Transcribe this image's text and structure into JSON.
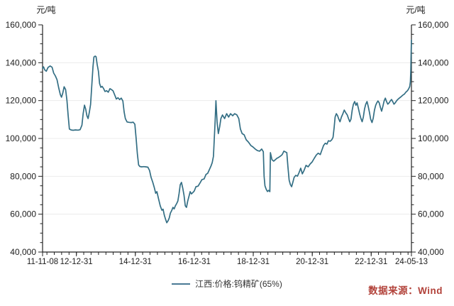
{
  "colors": {
    "axis": "#222222",
    "grid": "#ececec",
    "label": "#1c1c1c",
    "line": "#336e84",
    "legend_marker": "#4a7a95",
    "source_text": "#b2423a",
    "background": "#ffffff"
  },
  "footer": {
    "source_text": "数据来源：Wind"
  },
  "chart_data": {
    "type": "line",
    "title": "",
    "unit_label_left": "元/吨",
    "unit_label_right": "元/吨",
    "xlabel": "",
    "ylabel": "元/吨",
    "ylim": [
      40000,
      160000
    ],
    "y_tick_step": 20000,
    "y_minor_step": 5000,
    "grid": "horizontal-light",
    "legend_position": "bottom-center",
    "x_range": [
      "2011-11-08",
      "2024-05-13"
    ],
    "x_ticks": [
      {
        "label": "11-11-08",
        "date": "2011-11-08"
      },
      {
        "label": "12-12-31",
        "date": "2012-12-31"
      },
      {
        "label": "14-12-31",
        "date": "2014-12-31"
      },
      {
        "label": "16-12-31",
        "date": "2016-12-31"
      },
      {
        "label": "18-12-31",
        "date": "2018-12-31"
      },
      {
        "label": "20-12-31",
        "date": "2020-12-31"
      },
      {
        "label": "22-12-31",
        "date": "2022-12-31"
      },
      {
        "label": "24-05-13",
        "date": "2024-05-13"
      }
    ],
    "series": [
      {
        "name": "江西:价格:钨精矿(65%)",
        "color": "#336e84",
        "points": [
          [
            "2011-11-08",
            137000
          ],
          [
            "2011-11-20",
            137800
          ],
          [
            "2011-12-05",
            136200
          ],
          [
            "2011-12-25",
            135500
          ],
          [
            "2012-01-15",
            137500
          ],
          [
            "2012-02-10",
            138300
          ],
          [
            "2012-03-05",
            137600
          ],
          [
            "2012-03-25",
            134500
          ],
          [
            "2012-04-15",
            133000
          ],
          [
            "2012-05-05",
            131000
          ],
          [
            "2012-05-25",
            127000
          ],
          [
            "2012-06-15",
            123200
          ],
          [
            "2012-06-30",
            121800
          ],
          [
            "2012-07-15",
            123800
          ],
          [
            "2012-08-01",
            127300
          ],
          [
            "2012-08-20",
            125800
          ],
          [
            "2012-09-05",
            120000
          ],
          [
            "2012-09-20",
            112000
          ],
          [
            "2012-10-05",
            105000
          ],
          [
            "2012-10-25",
            104500
          ],
          [
            "2012-11-20",
            104300
          ],
          [
            "2012-12-20",
            104500
          ],
          [
            "2013-01-20",
            104400
          ],
          [
            "2013-02-15",
            104600
          ],
          [
            "2013-03-10",
            107000
          ],
          [
            "2013-03-25",
            113000
          ],
          [
            "2013-04-10",
            117600
          ],
          [
            "2013-04-25",
            115500
          ],
          [
            "2013-05-10",
            112000
          ],
          [
            "2013-05-25",
            110500
          ],
          [
            "2013-06-10",
            114000
          ],
          [
            "2013-06-25",
            118000
          ],
          [
            "2013-07-10",
            128000
          ],
          [
            "2013-07-25",
            138000
          ],
          [
            "2013-08-05",
            143000
          ],
          [
            "2013-08-20",
            143500
          ],
          [
            "2013-09-01",
            143200
          ],
          [
            "2013-09-15",
            139000
          ],
          [
            "2013-09-30",
            135600
          ],
          [
            "2013-10-15",
            129000
          ],
          [
            "2013-10-30",
            127000
          ],
          [
            "2013-11-15",
            127500
          ],
          [
            "2013-12-01",
            126500
          ],
          [
            "2013-12-20",
            124800
          ],
          [
            "2014-01-10",
            125200
          ],
          [
            "2014-01-30",
            124400
          ],
          [
            "2014-02-20",
            126300
          ],
          [
            "2014-03-10",
            125800
          ],
          [
            "2014-03-30",
            125200
          ],
          [
            "2014-04-20",
            123000
          ],
          [
            "2014-05-10",
            120800
          ],
          [
            "2014-05-30",
            121500
          ],
          [
            "2014-06-20",
            120500
          ],
          [
            "2014-07-10",
            121300
          ],
          [
            "2014-07-30",
            119800
          ],
          [
            "2014-08-15",
            114000
          ],
          [
            "2014-08-30",
            110500
          ],
          [
            "2014-09-20",
            108700
          ],
          [
            "2014-10-15",
            108500
          ],
          [
            "2014-11-10",
            108400
          ],
          [
            "2014-12-05",
            108600
          ],
          [
            "2014-12-25",
            107500
          ],
          [
            "2015-01-10",
            100000
          ],
          [
            "2015-01-25",
            92000
          ],
          [
            "2015-02-10",
            86000
          ],
          [
            "2015-02-25",
            85200
          ],
          [
            "2015-03-20",
            85000
          ],
          [
            "2015-04-15",
            85100
          ],
          [
            "2015-05-10",
            85000
          ],
          [
            "2015-06-05",
            84800
          ],
          [
            "2015-06-25",
            83100
          ],
          [
            "2015-07-15",
            79400
          ],
          [
            "2015-08-05",
            76800
          ],
          [
            "2015-08-25",
            73800
          ],
          [
            "2015-09-10",
            71000
          ],
          [
            "2015-09-25",
            71900
          ],
          [
            "2015-10-15",
            68100
          ],
          [
            "2015-11-05",
            64400
          ],
          [
            "2015-11-25",
            62100
          ],
          [
            "2015-12-10",
            62600
          ],
          [
            "2015-12-25",
            59500
          ],
          [
            "2016-01-10",
            57300
          ],
          [
            "2016-01-25",
            55500
          ],
          [
            "2016-02-10",
            56500
          ],
          [
            "2016-02-25",
            58000
          ],
          [
            "2016-03-10",
            60600
          ],
          [
            "2016-03-25",
            61800
          ],
          [
            "2016-04-10",
            63600
          ],
          [
            "2016-04-25",
            62800
          ],
          [
            "2016-05-10",
            64400
          ],
          [
            "2016-05-25",
            65500
          ],
          [
            "2016-06-10",
            66900
          ],
          [
            "2016-06-25",
            70800
          ],
          [
            "2016-07-10",
            75600
          ],
          [
            "2016-07-25",
            76800
          ],
          [
            "2016-08-10",
            73800
          ],
          [
            "2016-08-25",
            70000
          ],
          [
            "2016-09-10",
            64400
          ],
          [
            "2016-09-25",
            63600
          ],
          [
            "2016-10-10",
            66900
          ],
          [
            "2016-10-25",
            69300
          ],
          [
            "2016-11-10",
            71900
          ],
          [
            "2016-11-25",
            70700
          ],
          [
            "2016-12-15",
            71500
          ],
          [
            "2016-12-31",
            72300
          ],
          [
            "2017-01-20",
            74500
          ],
          [
            "2017-02-15",
            74800
          ],
          [
            "2017-03-10",
            76400
          ],
          [
            "2017-04-05",
            78300
          ],
          [
            "2017-05-01",
            78600
          ],
          [
            "2017-05-25",
            81000
          ],
          [
            "2017-06-15",
            81600
          ],
          [
            "2017-07-05",
            83500
          ],
          [
            "2017-07-25",
            85400
          ],
          [
            "2017-08-10",
            87300
          ],
          [
            "2017-08-25",
            90600
          ],
          [
            "2017-09-05",
            100000
          ],
          [
            "2017-09-15",
            109400
          ],
          [
            "2017-09-25",
            119900
          ],
          [
            "2017-10-10",
            108300
          ],
          [
            "2017-10-25",
            102600
          ],
          [
            "2017-11-10",
            106000
          ],
          [
            "2017-11-25",
            110500
          ],
          [
            "2017-12-15",
            112400
          ],
          [
            "2018-01-10",
            110500
          ],
          [
            "2018-02-05",
            113100
          ],
          [
            "2018-03-01",
            111300
          ],
          [
            "2018-03-25",
            113100
          ],
          [
            "2018-04-20",
            112000
          ],
          [
            "2018-05-15",
            113100
          ],
          [
            "2018-06-10",
            112500
          ],
          [
            "2018-07-05",
            110500
          ],
          [
            "2018-07-25",
            105000
          ],
          [
            "2018-08-15",
            102600
          ],
          [
            "2018-09-10",
            101900
          ],
          [
            "2018-10-05",
            99300
          ],
          [
            "2018-11-01",
            98100
          ],
          [
            "2018-12-01",
            96300
          ],
          [
            "2018-12-28",
            95500
          ],
          [
            "2019-01-25",
            94400
          ],
          [
            "2019-02-20",
            93600
          ],
          [
            "2019-03-20",
            93300
          ],
          [
            "2019-04-15",
            94400
          ],
          [
            "2019-05-05",
            93000
          ],
          [
            "2019-05-15",
            80000
          ],
          [
            "2019-05-25",
            75000
          ],
          [
            "2019-06-10",
            73100
          ],
          [
            "2019-06-25",
            72000
          ],
          [
            "2019-07-10",
            72600
          ],
          [
            "2019-07-25",
            71900
          ],
          [
            "2019-08-01",
            92500
          ],
          [
            "2019-08-20",
            88800
          ],
          [
            "2019-09-10",
            88000
          ],
          [
            "2019-10-01",
            88800
          ],
          [
            "2019-10-20",
            89500
          ],
          [
            "2019-11-10",
            90000
          ],
          [
            "2019-12-01",
            90600
          ],
          [
            "2019-12-25",
            91500
          ],
          [
            "2020-01-15",
            93300
          ],
          [
            "2020-02-20",
            92500
          ],
          [
            "2020-03-05",
            85000
          ],
          [
            "2020-03-20",
            78000
          ],
          [
            "2020-04-05",
            75600
          ],
          [
            "2020-04-20",
            74500
          ],
          [
            "2020-05-05",
            76800
          ],
          [
            "2020-05-20",
            79400
          ],
          [
            "2020-06-10",
            80500
          ],
          [
            "2020-07-01",
            80100
          ],
          [
            "2020-07-20",
            81900
          ],
          [
            "2020-08-10",
            84300
          ],
          [
            "2020-08-30",
            81300
          ],
          [
            "2020-09-20",
            83100
          ],
          [
            "2020-10-15",
            85800
          ],
          [
            "2020-11-10",
            85000
          ],
          [
            "2020-12-05",
            86500
          ],
          [
            "2020-12-30",
            87600
          ],
          [
            "2021-01-25",
            89500
          ],
          [
            "2021-02-20",
            91300
          ],
          [
            "2021-03-15",
            92200
          ],
          [
            "2021-04-10",
            91500
          ],
          [
            "2021-05-01",
            94000
          ],
          [
            "2021-05-20",
            96300
          ],
          [
            "2021-06-10",
            97500
          ],
          [
            "2021-07-01",
            97000
          ],
          [
            "2021-07-20",
            98800
          ],
          [
            "2021-08-10",
            98500
          ],
          [
            "2021-08-30",
            99300
          ],
          [
            "2021-09-15",
            100600
          ],
          [
            "2021-09-28",
            105600
          ],
          [
            "2021-10-10",
            111300
          ],
          [
            "2021-10-25",
            113100
          ],
          [
            "2021-11-10",
            112000
          ],
          [
            "2021-11-25",
            110200
          ],
          [
            "2021-12-10",
            108800
          ],
          [
            "2021-12-28",
            111300
          ],
          [
            "2022-01-15",
            113100
          ],
          [
            "2022-02-01",
            115000
          ],
          [
            "2022-02-20",
            113500
          ],
          [
            "2022-03-10",
            112400
          ],
          [
            "2022-03-25",
            110600
          ],
          [
            "2022-04-10",
            108800
          ],
          [
            "2022-04-25",
            110200
          ],
          [
            "2022-05-10",
            115000
          ],
          [
            "2022-05-25",
            118100
          ],
          [
            "2022-06-10",
            119500
          ],
          [
            "2022-06-25",
            117500
          ],
          [
            "2022-07-10",
            118800
          ],
          [
            "2022-07-25",
            116100
          ],
          [
            "2022-08-10",
            113100
          ],
          [
            "2022-08-25",
            110600
          ],
          [
            "2022-09-10",
            108800
          ],
          [
            "2022-09-25",
            111300
          ],
          [
            "2022-10-10",
            115600
          ],
          [
            "2022-10-25",
            118100
          ],
          [
            "2022-11-10",
            119500
          ],
          [
            "2022-11-25",
            116900
          ],
          [
            "2022-12-10",
            113800
          ],
          [
            "2022-12-25",
            110200
          ],
          [
            "2023-01-10",
            108400
          ],
          [
            "2023-01-25",
            110600
          ],
          [
            "2023-02-10",
            115000
          ],
          [
            "2023-02-25",
            117500
          ],
          [
            "2023-03-10",
            118800
          ],
          [
            "2023-03-25",
            119800
          ],
          [
            "2023-04-10",
            118800
          ],
          [
            "2023-04-25",
            116300
          ],
          [
            "2023-05-10",
            114400
          ],
          [
            "2023-05-25",
            116900
          ],
          [
            "2023-06-10",
            119800
          ],
          [
            "2023-06-25",
            121300
          ],
          [
            "2023-07-10",
            119400
          ],
          [
            "2023-07-25",
            118100
          ],
          [
            "2023-08-10",
            118800
          ],
          [
            "2023-08-25",
            119800
          ],
          [
            "2023-09-10",
            120600
          ],
          [
            "2023-09-25",
            119400
          ],
          [
            "2023-10-10",
            118100
          ],
          [
            "2023-10-25",
            118800
          ],
          [
            "2023-11-10",
            119800
          ],
          [
            "2023-11-25",
            120600
          ],
          [
            "2023-12-15",
            121300
          ],
          [
            "2024-01-05",
            122000
          ],
          [
            "2024-01-25",
            122800
          ],
          [
            "2024-02-15",
            123400
          ],
          [
            "2024-03-05",
            124400
          ],
          [
            "2024-03-25",
            125200
          ],
          [
            "2024-04-10",
            126300
          ],
          [
            "2024-04-22",
            127400
          ],
          [
            "2024-04-30",
            130000
          ],
          [
            "2024-05-05",
            136000
          ],
          [
            "2024-05-09",
            144000
          ],
          [
            "2024-05-13",
            152000
          ]
        ]
      }
    ]
  }
}
